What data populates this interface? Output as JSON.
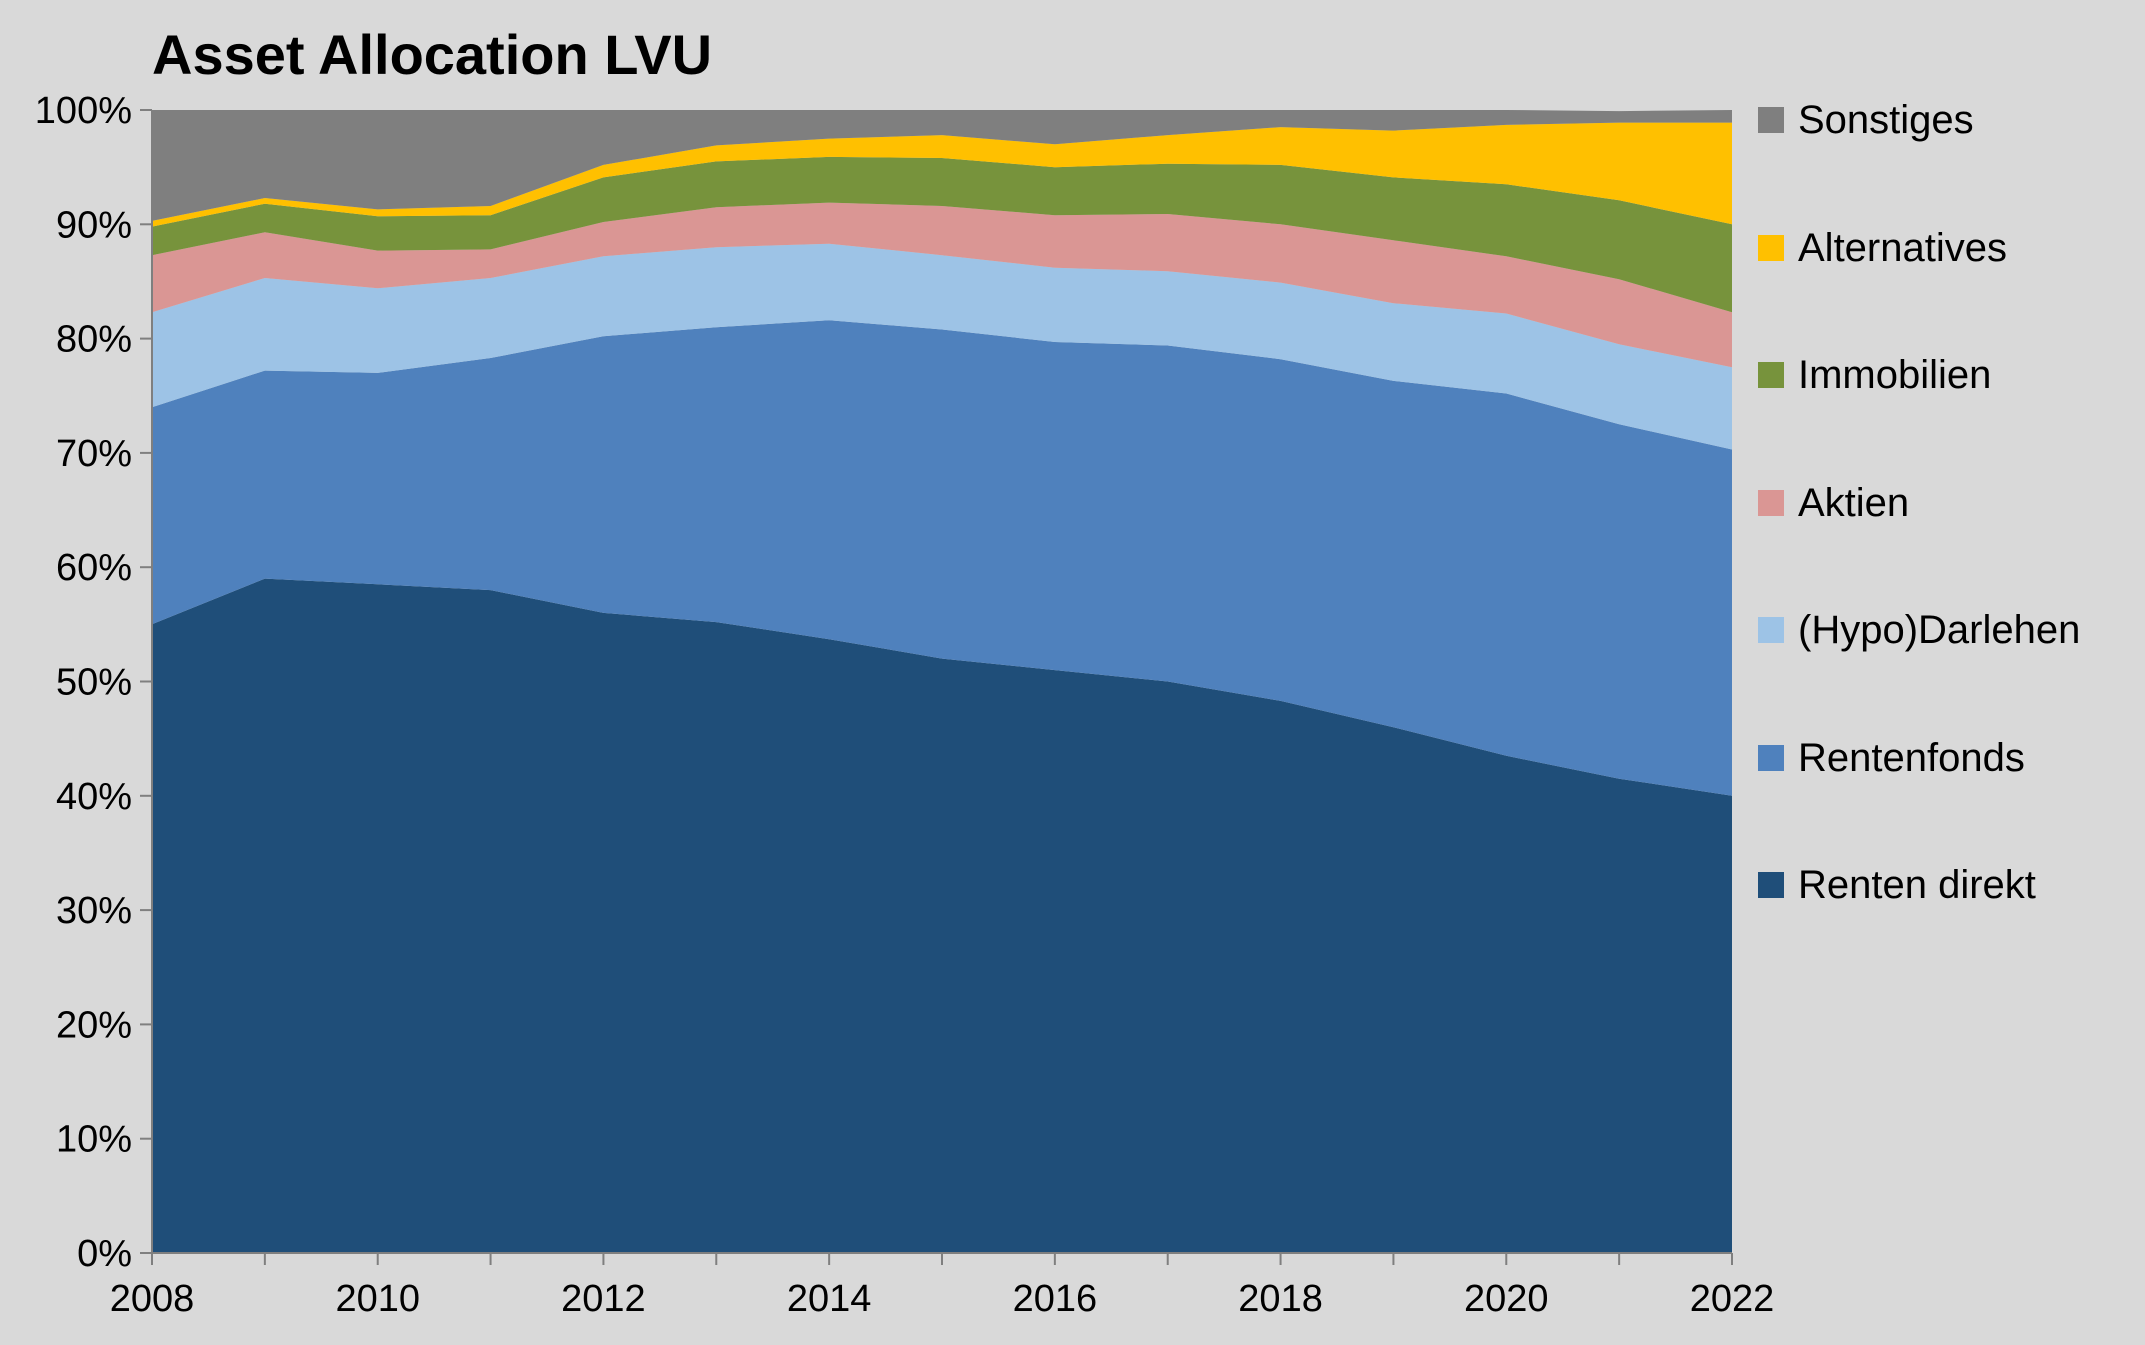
{
  "chart_data": {
    "type": "area",
    "stacked": true,
    "title": "Asset Allocation LVU",
    "xlabel": "",
    "ylabel": "",
    "x": [
      2008,
      2009,
      2010,
      2011,
      2012,
      2013,
      2014,
      2015,
      2016,
      2017,
      2018,
      2019,
      2020,
      2021,
      2022
    ],
    "xticks": [
      "2008",
      "2010",
      "2012",
      "2014",
      "2016",
      "2018",
      "2020",
      "2022"
    ],
    "yticks": [
      "0%",
      "10%",
      "20%",
      "30%",
      "40%",
      "50%",
      "60%",
      "70%",
      "80%",
      "90%",
      "100%"
    ],
    "ylim": [
      0,
      100
    ],
    "grid": false,
    "legend_position": "right",
    "series": [
      {
        "name": "Renten direkt",
        "color": "#1f4e79",
        "values": [
          55,
          59,
          58.5,
          58,
          56,
          55.2,
          53.7,
          52,
          51,
          50,
          48.3,
          46,
          43.5,
          41.5,
          40
        ]
      },
      {
        "name": "Rentenfonds",
        "color": "#4f81bd",
        "values": [
          19,
          18.2,
          18.5,
          20.3,
          24.2,
          25.8,
          27.9,
          28.8,
          28.7,
          29.4,
          29.9,
          30.3,
          31.7,
          31,
          30.3
        ]
      },
      {
        "name": "(Hypo)Darlehen",
        "color": "#9dc3e6",
        "values": [
          8.3,
          8.1,
          7.4,
          7,
          7,
          7,
          6.7,
          6.5,
          6.5,
          6.5,
          6.7,
          6.8,
          7,
          7,
          7.2
        ]
      },
      {
        "name": "Aktien",
        "color": "#da9694",
        "values": [
          5,
          4,
          3.3,
          2.5,
          3,
          3.5,
          3.6,
          4.3,
          4.6,
          5,
          5.1,
          5.5,
          5,
          5.7,
          4.8
        ]
      },
      {
        "name": "Immobilien",
        "color": "#77933c",
        "values": [
          2.5,
          2.5,
          3,
          3,
          3.9,
          4,
          4,
          4.2,
          4.2,
          4.4,
          5.2,
          5.5,
          6.3,
          6.9,
          7.7
        ]
      },
      {
        "name": "Alternatives",
        "color": "#ffc000",
        "values": [
          0.5,
          0.5,
          0.6,
          0.8,
          1.1,
          1.4,
          1.6,
          2,
          2,
          2.5,
          3.3,
          4.1,
          5.2,
          6.8,
          8.9
        ]
      },
      {
        "name": "Sonstiges",
        "color": "#7f7f7f",
        "values": [
          9.7,
          7.7,
          8.7,
          8.4,
          4.8,
          3.1,
          2.5,
          2.2,
          3,
          2.2,
          1.5,
          1.8,
          1.3,
          1,
          1.1
        ]
      }
    ],
    "legend_order": [
      "Sonstiges",
      "Alternatives",
      "Immobilien",
      "Aktien",
      "(Hypo)Darlehen",
      "Rentenfonds",
      "Renten direkt"
    ]
  }
}
